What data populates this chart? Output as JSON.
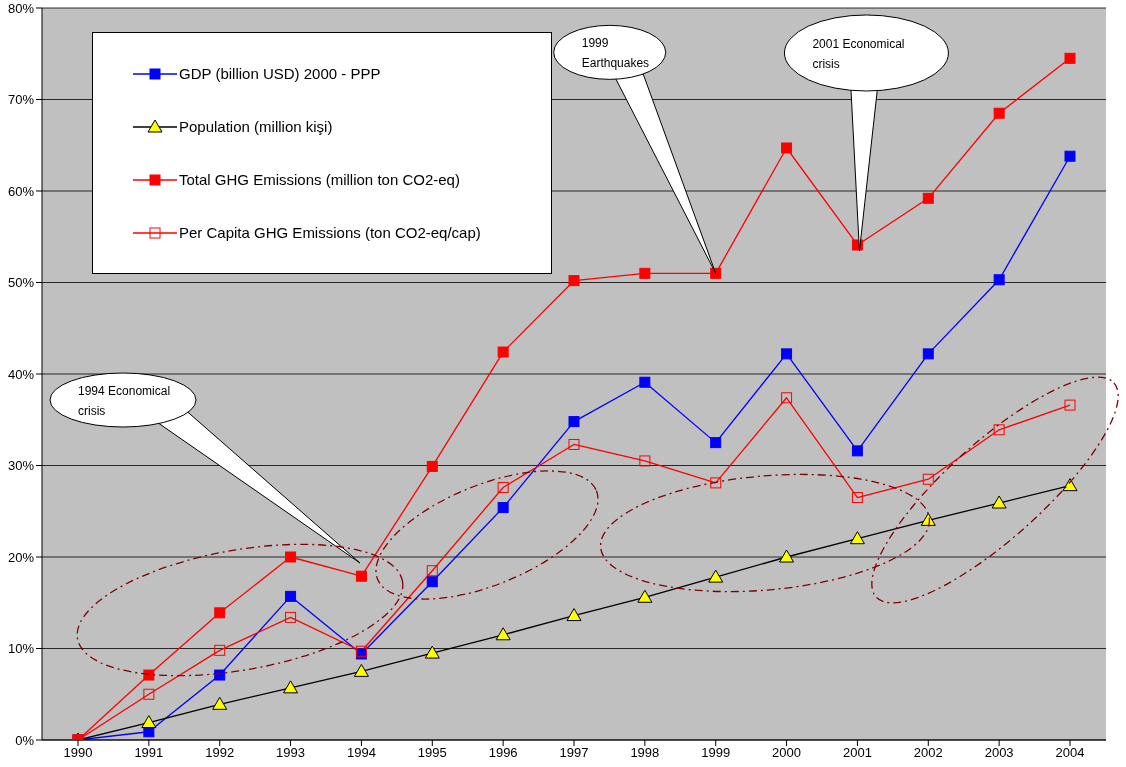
{
  "chart_data": {
    "type": "line",
    "categories": [
      "1990",
      "1991",
      "1992",
      "1993",
      "1994",
      "1995",
      "1996",
      "1997",
      "1998",
      "1999",
      "2000",
      "2001",
      "2002",
      "2003",
      "2004"
    ],
    "series": [
      {
        "name": "GDP (billion USD) 2000 - PPP",
        "color": "#0000ff",
        "marker": "square",
        "values": [
          0,
          0.9,
          7.1,
          15.7,
          9.4,
          17.3,
          25.4,
          34.8,
          39.1,
          32.5,
          42.2,
          31.6,
          42.2,
          50.3,
          63.8
        ]
      },
      {
        "name": "Population (million kişi)",
        "color": "#000000",
        "marker": "triangle",
        "values": [
          0,
          1.9,
          3.9,
          5.7,
          7.5,
          9.5,
          11.5,
          13.6,
          15.6,
          17.8,
          20,
          22,
          24,
          25.9,
          27.8
        ]
      },
      {
        "name": "Total GHG Emissions (million ton CO2-eq)",
        "color": "#ff0000",
        "marker": "square",
        "values": [
          0,
          7.1,
          13.9,
          20,
          17.9,
          29.9,
          42.4,
          50.2,
          51,
          51,
          64.7,
          54.1,
          59.2,
          68.5,
          74.5
        ]
      },
      {
        "name": "Per Capita GHG Emissions (ton CO2-eq/cap)",
        "color": "#ff0000",
        "marker": "square",
        "values": [
          0,
          5,
          9.8,
          13.4,
          9.7,
          18.5,
          27.6,
          32.3,
          30.5,
          28.1,
          37.4,
          26.5,
          28.5,
          33.9,
          36.6
        ]
      }
    ],
    "ylim": [
      0,
      80
    ],
    "yticks": [
      {
        "value": 0,
        "label": "0%"
      },
      {
        "value": 10,
        "label": "10%"
      },
      {
        "value": 20,
        "label": "20%"
      },
      {
        "value": 30,
        "label": "30%"
      },
      {
        "value": 40,
        "label": "40%"
      },
      {
        "value": 50,
        "label": "50%"
      },
      {
        "value": 60,
        "label": "60%"
      },
      {
        "value": 70,
        "label": "70%"
      },
      {
        "value": 80,
        "label": "80%"
      }
    ],
    "grid": "y",
    "legend": "top left",
    "annotations": [
      "1994 Economical crisis",
      {
        "text": "1999 Earthquakes",
        "x": "1999",
        "y": 51
      },
      {
        "text": "2001 Economical crisis",
        "x": "2001",
        "y": 54.1
      }
    ]
  }
}
